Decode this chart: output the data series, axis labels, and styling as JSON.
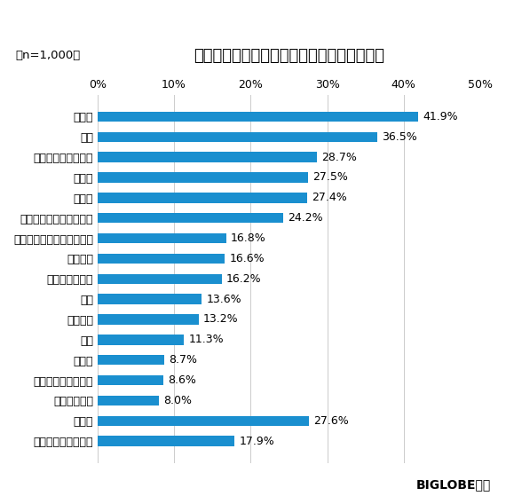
{
  "title": "ワクチン接種後に行きたい場所（複数回答）",
  "sample_label": "（n=1,000）",
  "categories": [
    "観光地",
    "温泉",
    "カフェ・レストラン",
    "映画館",
    "居酒屋",
    "大型ショッピングモール",
    "ライブハウス・コンサート",
    "カラオケ",
    "美術館・博物館",
    "実家",
    "遊戯施設",
    "劇場",
    "図書館",
    "ジム・フィットネス",
    "マッサージ店",
    "その他",
    "行きたい場所はない"
  ],
  "values": [
    41.9,
    36.5,
    28.7,
    27.5,
    27.4,
    24.2,
    16.8,
    16.6,
    16.2,
    13.6,
    13.2,
    11.3,
    8.7,
    8.6,
    8.0,
    27.6,
    17.9
  ],
  "bar_color": "#1a8fcf",
  "xlim": [
    0,
    50
  ],
  "xticks": [
    0,
    10,
    20,
    30,
    40,
    50
  ],
  "xtick_labels": [
    "0%",
    "10%",
    "20%",
    "30%",
    "40%",
    "50%"
  ],
  "background_color": "#ffffff",
  "title_fontsize": 13,
  "label_fontsize": 9,
  "value_fontsize": 9,
  "tick_fontsize": 9,
  "footer_text": "BIGLOBE調べ",
  "footer_fontsize": 10,
  "bar_height": 0.5,
  "grid_color": "#cccccc",
  "grid_linewidth": 0.7
}
